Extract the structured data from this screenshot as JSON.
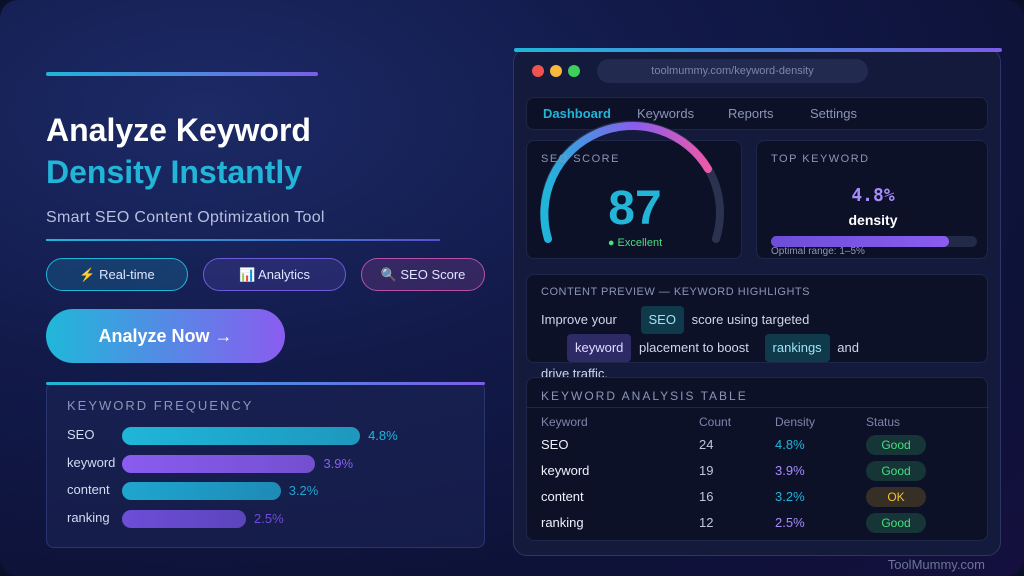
{
  "hero": {
    "title_line1": "Analyze Keyword",
    "title_line2": "Density Instantly",
    "subtitle": "Smart SEO Content Optimization Tool",
    "chips": [
      {
        "label": "⚡ Real-time",
        "color": "#1fb6d9"
      },
      {
        "label": "📊 Analytics",
        "color": "#6d5bd8"
      },
      {
        "label": "🔍 SEO Score",
        "color": "#b84fa8"
      }
    ],
    "cta": "Analyze Now →"
  },
  "frequency": {
    "title": "KEYWORD FREQUENCY",
    "categories": [
      "SEO",
      "keyword",
      "content",
      "ranking"
    ],
    "values": [
      4.8,
      3.9,
      3.2,
      2.5
    ],
    "value_labels": [
      "4.8%",
      "3.9%",
      "3.2%",
      "2.5%"
    ],
    "colors": [
      "#1fb6d9",
      "#8a5cf0",
      "#1fa6cf",
      "#6d4ed8"
    ]
  },
  "browser": {
    "url": "toolmummy.com/keyword-density",
    "tabs": [
      "Dashboard",
      "Keywords",
      "Reports",
      "Settings"
    ]
  },
  "seo_score": {
    "label": "SEO SCORE",
    "value": 87,
    "status": "● Excellent"
  },
  "top_keyword": {
    "label": "TOP KEYWORD",
    "value": "4.8%",
    "unit": "density",
    "note": "Optimal range: 1–5%"
  },
  "preview": {
    "title": "CONTENT PREVIEW — KEYWORD HIGHLIGHTS",
    "segments": [
      {
        "text": "Improve your",
        "highlight": false
      },
      {
        "text": "SEO",
        "highlight": true
      },
      {
        "text": "score using targeted",
        "highlight": false
      },
      {
        "text": "keyword",
        "highlight": true
      },
      {
        "text": "placement to boost",
        "highlight": false
      },
      {
        "text": "rankings",
        "highlight": true
      },
      {
        "text": "and drive traffic.",
        "highlight": false
      }
    ]
  },
  "table": {
    "title": "KEYWORD ANALYSIS TABLE",
    "columns": [
      "Keyword",
      "Count",
      "Density",
      "Status"
    ],
    "rows": [
      [
        "SEO",
        "24",
        "4.8%",
        "Good"
      ],
      [
        "keyword",
        "19",
        "3.9%",
        "Good"
      ],
      [
        "content",
        "16",
        "3.2%",
        "OK"
      ],
      [
        "ranking",
        "12",
        "2.5%",
        "Good"
      ]
    ],
    "status_colors": [
      "#4ade80",
      "#4ade80",
      "#fbbf24",
      "#4ade80"
    ],
    "density_colors": [
      "#22b5d8",
      "#a78bfa",
      "#22b5d8",
      "#a78bfa"
    ]
  },
  "footer": "ToolMummy.com"
}
